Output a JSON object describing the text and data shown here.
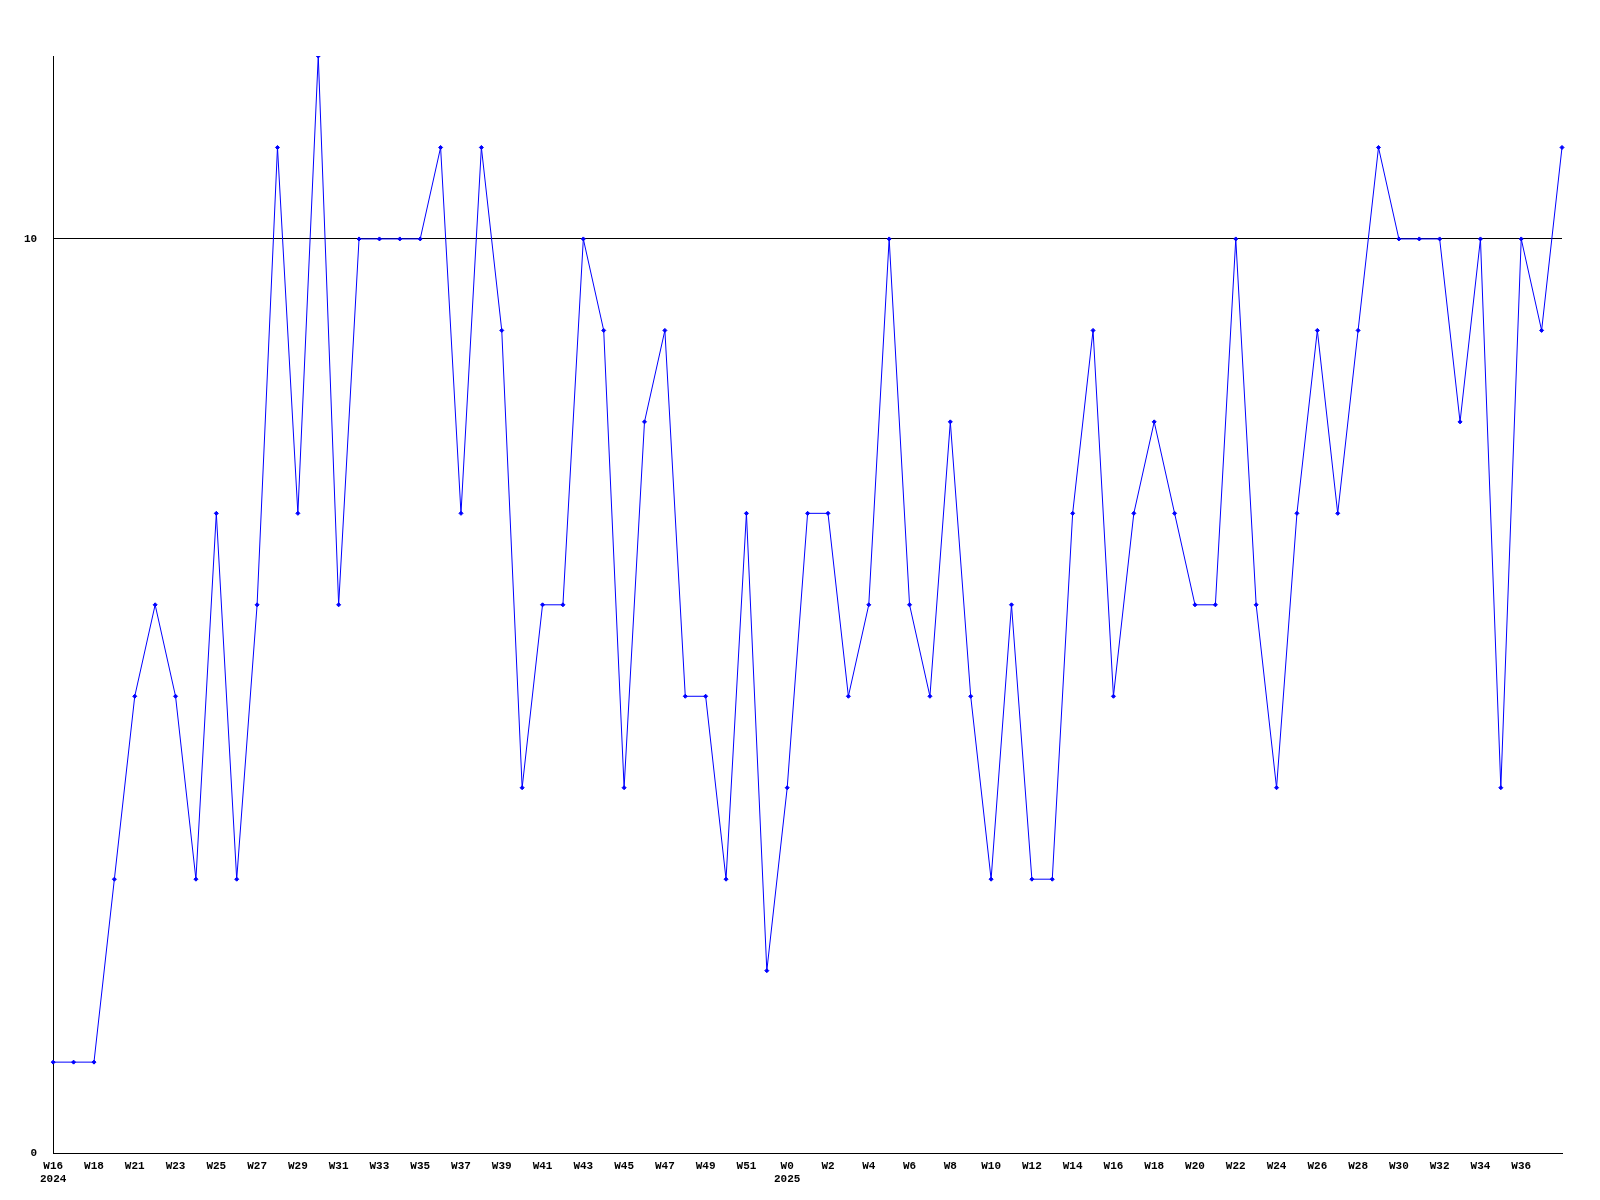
{
  "chart_data": {
    "type": "line",
    "categories": [
      "W16\n2024",
      null,
      "W18",
      null,
      "W21",
      null,
      "W23",
      null,
      "W25",
      null,
      "W27",
      null,
      "W29",
      null,
      "W31",
      null,
      "W33",
      null,
      "W35",
      null,
      "W37",
      null,
      "W39",
      null,
      "W41",
      null,
      "W43",
      null,
      "W45",
      null,
      "W47",
      null,
      "W49",
      null,
      "W51",
      null,
      "W0\n2025",
      null,
      "W2",
      null,
      "W4",
      null,
      "W6",
      null,
      "W8",
      null,
      "W10",
      null,
      "W12",
      null,
      "W14",
      null,
      "W16",
      null,
      "W18",
      null,
      "W20",
      null,
      "W22",
      null,
      "W24",
      null,
      "W26",
      null,
      "W28",
      null,
      "W30",
      null,
      "W32",
      null,
      "W34",
      null,
      "W36",
      null,
      null
    ],
    "series": [
      {
        "color": "#0000ff",
        "values": [
          1,
          1,
          1,
          3,
          5,
          6,
          5,
          3,
          7,
          3,
          6,
          11,
          7,
          12,
          6,
          10,
          10,
          10,
          10,
          11,
          7,
          11,
          9,
          4,
          6,
          6,
          10,
          9,
          4,
          8,
          9,
          5,
          5,
          3,
          7,
          2,
          4,
          7,
          7,
          5,
          6,
          10,
          6,
          5,
          8,
          5,
          3,
          6,
          3,
          3,
          7,
          9,
          5,
          7,
          8,
          7,
          6,
          6,
          10,
          6,
          4,
          7,
          9,
          7,
          9,
          11,
          10,
          10,
          10,
          8,
          10,
          4,
          10,
          9,
          11
        ]
      }
    ],
    "ylim": [
      0,
      12
    ],
    "yticks": [
      0,
      10
    ],
    "grid": "y",
    "legend": false,
    "marker": "diamond",
    "line_style": "solid"
  }
}
